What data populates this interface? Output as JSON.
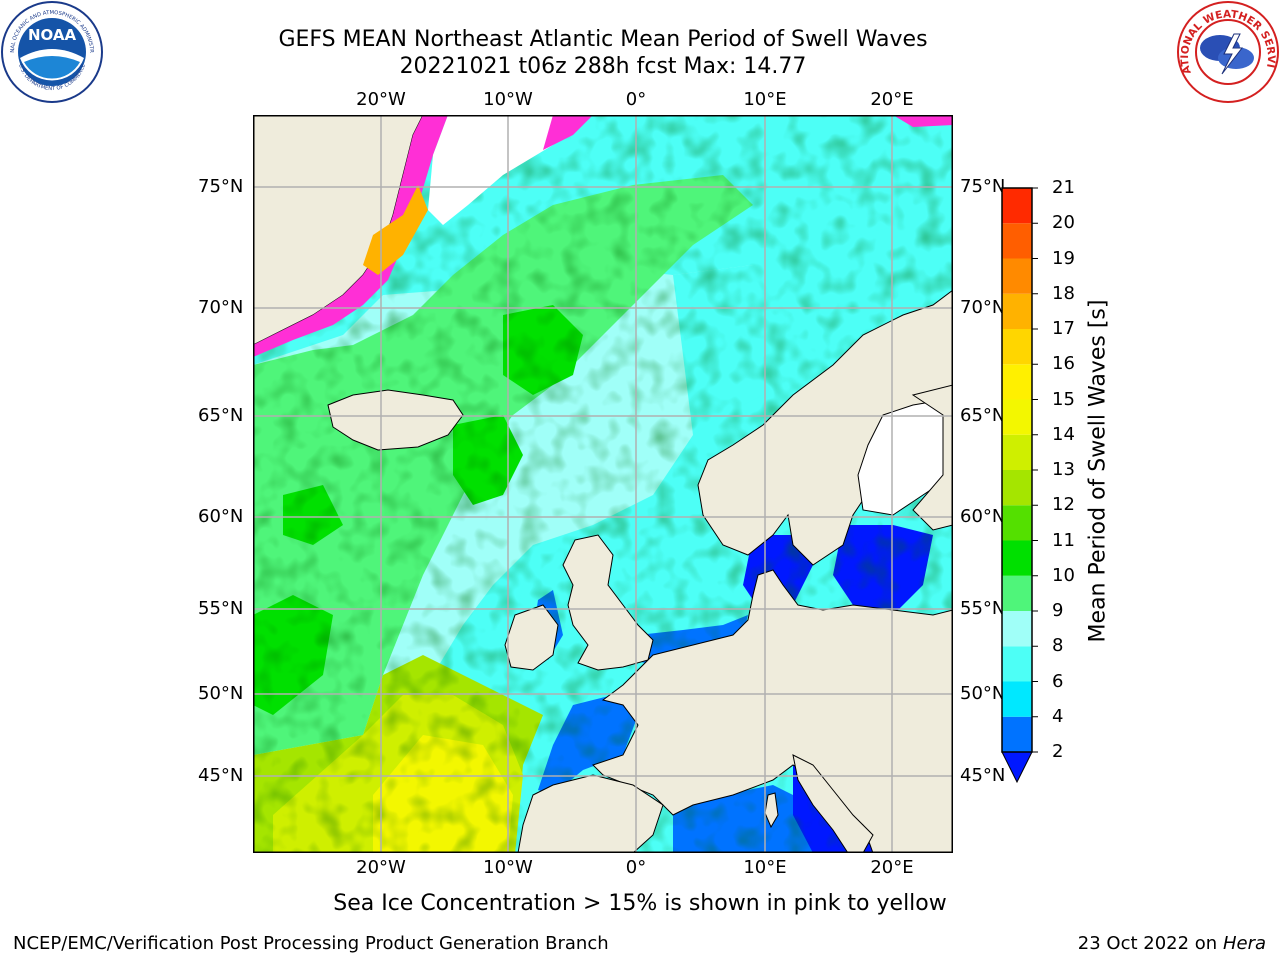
{
  "title": {
    "line1": "GEFS MEAN Northeast Atlantic Mean Period of Swell Waves",
    "line2": "20221021 t06z 288h fcst   Max: 14.77"
  },
  "logos": {
    "left": "NOAA",
    "right": "NATIONAL WEATHER SERVICE",
    "left_ring": "NATIONAL OCEANIC AND ATMOSPHERIC ADMINISTRATION",
    "left_ring_bottom": "U.S. DEPARTMENT OF COMMERCE"
  },
  "map": {
    "lon_labels": [
      "20°W",
      "10°W",
      "0°",
      "10°E",
      "20°E"
    ],
    "lat_labels": [
      "75°N",
      "70°N",
      "65°N",
      "60°N",
      "55°N",
      "50°N",
      "45°N"
    ],
    "colors": {
      "land": "#efecdc",
      "coast": "#000000",
      "grid": "#b0b0b0"
    }
  },
  "colorbar": {
    "label": "Mean Period of Swell Waves [s]",
    "ticks": [
      "2",
      "4",
      "6",
      "8",
      "9",
      "10",
      "11",
      "12",
      "13",
      "14",
      "15",
      "16",
      "17",
      "18",
      "19",
      "20",
      "21"
    ],
    "colors": [
      "#0073ff",
      "#00e8ff",
      "#4dfff6",
      "#a0fff8",
      "#4ff57a",
      "#00e000",
      "#54e000",
      "#a5e500",
      "#cfef00",
      "#f3f700",
      "#fff000",
      "#ffd600",
      "#ffb200",
      "#ff8a00",
      "#ff5e00",
      "#ff2a00"
    ],
    "under_color": "#0018ff"
  },
  "note": "Sea Ice Concentration > 15% is shown in pink to yellow",
  "footer": {
    "left": "NCEP/EMC/Verification Post Processing Product Generation Branch",
    "right_date": "23 Oct 2022 on",
    "right_host": "Hera"
  }
}
